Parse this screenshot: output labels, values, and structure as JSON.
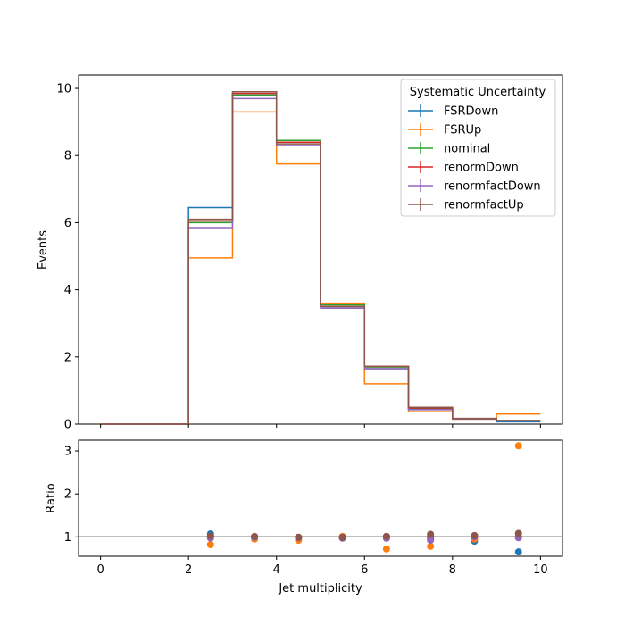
{
  "chart_data": [
    {
      "type": "line",
      "subtype": "step-histogram",
      "title": "",
      "xlabel": "",
      "ylabel": "Events",
      "xlim": [
        -0.5,
        10.5
      ],
      "ylim": [
        0,
        10.4
      ],
      "xticks": [
        0,
        2,
        4,
        6,
        8,
        10
      ],
      "xtick_labels": [
        "0",
        "2",
        "4",
        "6",
        "8",
        "10"
      ],
      "yticks": [
        0,
        2,
        4,
        6,
        8,
        10
      ],
      "ytick_labels": [
        "0",
        "2",
        "4",
        "6",
        "8",
        "10"
      ],
      "grid": false,
      "legend": {
        "title": "Systematic Uncertainty",
        "placement": "upper-right"
      },
      "bin_edges": [
        0,
        1,
        2,
        3,
        4,
        5,
        6,
        7,
        8,
        9,
        10
      ],
      "series": [
        {
          "name": "FSRDown",
          "color": "#1f77b4",
          "values": [
            0,
            0,
            6.45,
            9.8,
            8.4,
            3.5,
            1.65,
            0.45,
            0.15,
            0.07
          ]
        },
        {
          "name": "FSRUp",
          "color": "#ff7f0e",
          "values": [
            0,
            0,
            4.95,
            9.3,
            7.75,
            3.6,
            1.2,
            0.37,
            0.15,
            0.3
          ]
        },
        {
          "name": "nominal",
          "color": "#2ca02c",
          "values": [
            0,
            0,
            6.0,
            9.8,
            8.45,
            3.55,
            1.7,
            0.47,
            0.16,
            0.1
          ]
        },
        {
          "name": "renormDown",
          "color": "#d62728",
          "values": [
            0,
            0,
            6.05,
            9.85,
            8.4,
            3.5,
            1.72,
            0.48,
            0.16,
            0.1
          ]
        },
        {
          "name": "renormfactDown",
          "color": "#9467bd",
          "values": [
            0,
            0,
            5.85,
            9.7,
            8.3,
            3.45,
            1.65,
            0.43,
            0.16,
            0.1
          ]
        },
        {
          "name": "renormfactUp",
          "color": "#8c564b",
          "values": [
            0,
            0,
            6.1,
            9.9,
            8.35,
            3.5,
            1.72,
            0.5,
            0.17,
            0.11
          ]
        }
      ]
    },
    {
      "type": "scatter",
      "title": "",
      "xlabel": "Jet multiplicity",
      "ylabel": "Ratio",
      "xlim": [
        -0.5,
        10.5
      ],
      "ylim": [
        0.55,
        3.25
      ],
      "xticks": [
        0,
        2,
        4,
        6,
        8,
        10
      ],
      "xtick_labels": [
        "0",
        "2",
        "4",
        "6",
        "8",
        "10"
      ],
      "yticks": [
        1,
        2,
        3
      ],
      "ytick_labels": [
        "1",
        "2",
        "3"
      ],
      "reference_line": 1,
      "grid": false,
      "x": [
        2.5,
        3.5,
        4.5,
        5.5,
        6.5,
        7.5,
        8.5,
        9.5
      ],
      "series": [
        {
          "name": "FSRDown",
          "color": "#1f77b4",
          "values": [
            1.07,
            1.0,
            0.99,
            0.99,
            0.97,
            0.95,
            0.9,
            0.65
          ]
        },
        {
          "name": "FSRUp",
          "color": "#ff7f0e",
          "values": [
            0.82,
            0.95,
            0.92,
            1.01,
            0.72,
            0.78,
            0.95,
            3.12
          ]
        },
        {
          "name": "renormDown",
          "color": "#d62728",
          "values": [
            1.01,
            1.0,
            0.99,
            0.99,
            1.01,
            1.01,
            1.0,
            1.0
          ]
        },
        {
          "name": "renormfactDown",
          "color": "#9467bd",
          "values": [
            0.97,
            0.99,
            0.98,
            0.97,
            0.97,
            0.92,
            1.0,
            0.98
          ]
        },
        {
          "name": "renormfactUp",
          "color": "#8c564b",
          "values": [
            1.02,
            1.01,
            0.99,
            0.99,
            1.01,
            1.06,
            1.03,
            1.08
          ]
        }
      ]
    }
  ]
}
